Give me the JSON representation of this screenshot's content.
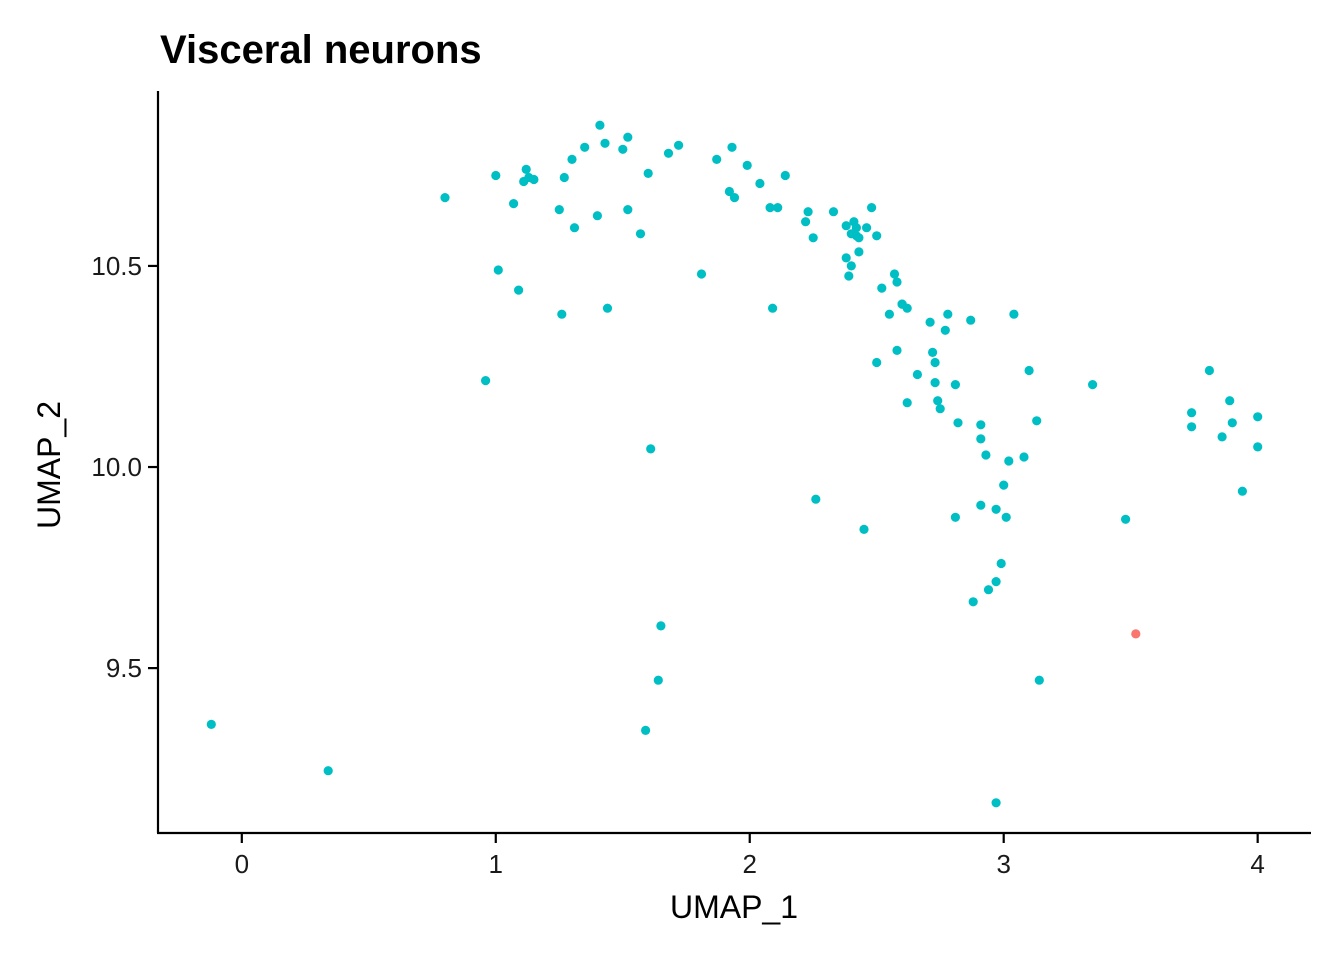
{
  "chart_data": {
    "type": "scatter",
    "title": "Visceral neurons",
    "xlabel": "UMAP_1",
    "ylabel": "UMAP_2",
    "xlim": [
      -0.33,
      4.21
    ],
    "ylim": [
      9.09,
      10.935
    ],
    "xticks": [
      0,
      1,
      2,
      3,
      4
    ],
    "xtick_labels": [
      "0",
      "1",
      "2",
      "3",
      "4"
    ],
    "yticks": [
      9.5,
      10.0,
      10.5
    ],
    "ytick_labels": [
      "9.5",
      "10.0",
      "10.5"
    ],
    "grid": false,
    "legend": "none",
    "series": [
      {
        "color": "#00BFC4",
        "points": [
          [
            -0.12,
            9.36
          ],
          [
            0.34,
            9.245
          ],
          [
            0.8,
            10.67
          ],
          [
            0.96,
            10.215
          ],
          [
            1.0,
            10.725
          ],
          [
            1.01,
            10.49
          ],
          [
            1.07,
            10.655
          ],
          [
            1.09,
            10.44
          ],
          [
            1.11,
            10.71
          ],
          [
            1.12,
            10.74
          ],
          [
            1.13,
            10.72
          ],
          [
            1.15,
            10.715
          ],
          [
            1.25,
            10.64
          ],
          [
            1.26,
            10.38
          ],
          [
            1.27,
            10.72
          ],
          [
            1.3,
            10.765
          ],
          [
            1.31,
            10.595
          ],
          [
            1.35,
            10.795
          ],
          [
            1.4,
            10.625
          ],
          [
            1.41,
            10.85
          ],
          [
            1.43,
            10.805
          ],
          [
            1.44,
            10.395
          ],
          [
            1.5,
            10.79
          ],
          [
            1.52,
            10.82
          ],
          [
            1.52,
            10.64
          ],
          [
            1.57,
            10.58
          ],
          [
            1.59,
            9.345
          ],
          [
            1.6,
            10.73
          ],
          [
            1.61,
            10.045
          ],
          [
            1.64,
            9.47
          ],
          [
            1.65,
            9.605
          ],
          [
            1.68,
            10.78
          ],
          [
            1.72,
            10.8
          ],
          [
            1.81,
            10.48
          ],
          [
            1.87,
            10.765
          ],
          [
            1.92,
            10.685
          ],
          [
            1.93,
            10.795
          ],
          [
            1.94,
            10.67
          ],
          [
            1.99,
            10.75
          ],
          [
            2.04,
            10.705
          ],
          [
            2.08,
            10.645
          ],
          [
            2.09,
            10.395
          ],
          [
            2.11,
            10.645
          ],
          [
            2.14,
            10.725
          ],
          [
            2.22,
            10.61
          ],
          [
            2.23,
            10.635
          ],
          [
            2.25,
            10.57
          ],
          [
            2.26,
            9.92
          ],
          [
            2.33,
            10.635
          ],
          [
            2.38,
            10.6
          ],
          [
            2.38,
            10.52
          ],
          [
            2.39,
            10.475
          ],
          [
            2.4,
            10.58
          ],
          [
            2.4,
            10.5
          ],
          [
            2.41,
            10.61
          ],
          [
            2.42,
            10.595
          ],
          [
            2.42,
            10.575
          ],
          [
            2.43,
            10.57
          ],
          [
            2.43,
            10.535
          ],
          [
            2.45,
            9.845
          ],
          [
            2.46,
            10.595
          ],
          [
            2.48,
            10.645
          ],
          [
            2.5,
            10.26
          ],
          [
            2.5,
            10.575
          ],
          [
            2.52,
            10.445
          ],
          [
            2.55,
            10.38
          ],
          [
            2.57,
            10.48
          ],
          [
            2.58,
            10.46
          ],
          [
            2.58,
            10.29
          ],
          [
            2.6,
            10.405
          ],
          [
            2.6,
            10.405
          ],
          [
            2.62,
            10.16
          ],
          [
            2.62,
            10.395
          ],
          [
            2.66,
            10.23
          ],
          [
            2.71,
            10.36
          ],
          [
            2.72,
            10.285
          ],
          [
            2.73,
            10.21
          ],
          [
            2.73,
            10.26
          ],
          [
            2.74,
            10.165
          ],
          [
            2.75,
            10.145
          ],
          [
            2.77,
            10.34
          ],
          [
            2.78,
            10.38
          ],
          [
            2.81,
            10.205
          ],
          [
            2.81,
            9.875
          ],
          [
            2.82,
            10.11
          ],
          [
            2.87,
            10.365
          ],
          [
            2.88,
            9.665
          ],
          [
            2.91,
            10.105
          ],
          [
            2.91,
            10.07
          ],
          [
            2.91,
            9.905
          ],
          [
            2.93,
            10.03
          ],
          [
            2.94,
            9.695
          ],
          [
            2.97,
            9.715
          ],
          [
            2.97,
            9.895
          ],
          [
            2.97,
            9.165
          ],
          [
            2.99,
            9.76
          ],
          [
            3.0,
            9.955
          ],
          [
            3.01,
            9.875
          ],
          [
            3.02,
            10.015
          ],
          [
            3.04,
            10.38
          ],
          [
            3.08,
            10.025
          ],
          [
            3.1,
            10.24
          ],
          [
            3.13,
            10.115
          ],
          [
            3.14,
            9.47
          ],
          [
            3.35,
            10.205
          ],
          [
            3.48,
            9.87
          ],
          [
            3.74,
            10.135
          ],
          [
            3.74,
            10.1
          ],
          [
            3.81,
            10.24
          ],
          [
            3.86,
            10.075
          ],
          [
            3.89,
            10.165
          ],
          [
            3.9,
            10.11
          ],
          [
            3.94,
            9.94
          ],
          [
            4.0,
            10.125
          ],
          [
            4.0,
            10.05
          ]
        ]
      },
      {
        "color": "#F8766D",
        "points": [
          [
            3.52,
            9.585
          ]
        ]
      }
    ]
  }
}
